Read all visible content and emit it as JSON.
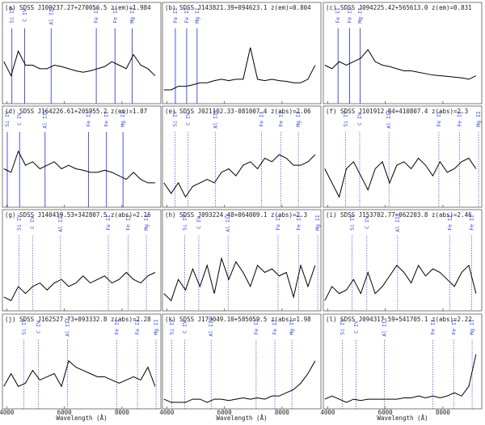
{
  "chart_data": [
    {
      "type": "line",
      "title": "(a) SDSS J100237.27+270056.5  z(em)=1.984",
      "x": [
        3900,
        4150,
        4400,
        4650,
        4900,
        5150,
        5400,
        5650,
        5900,
        6150,
        6400,
        6650,
        6900,
        7150,
        7400,
        7650,
        7900,
        8150,
        8400,
        8650,
        8900,
        9150
      ],
      "series": [
        {
          "color": "#000000",
          "values": [
            0.55,
            0.35,
            0.7,
            0.5,
            0.5,
            0.45,
            0.45,
            0.5,
            0.48,
            0.45,
            0.42,
            0.4,
            0.42,
            0.45,
            0.48,
            0.55,
            0.5,
            0.45,
            0.65,
            0.5,
            0.45,
            0.35
          ]
        }
      ],
      "xlim": [
        3850,
        9350
      ],
      "ylim": [
        0,
        1
      ],
      "xticks": [
        4000,
        6000,
        8000
      ],
      "line_color": "#3344dd",
      "line_style": "solid",
      "lines": [
        {
          "label": "Si IV",
          "wavelength": 4178
        },
        {
          "label": "C IV",
          "wavelength": 4622
        },
        {
          "label": "Al III",
          "wavelength": 5541
        },
        {
          "label": "Fe II",
          "wavelength": 7108
        },
        {
          "label": "Fe II",
          "wavelength": 7758
        },
        {
          "label": "Mg II",
          "wavelength": 8355
        }
      ]
    },
    {
      "type": "line",
      "title": "(b) SDSS J143821.39+094623.1  z(em)=0.804",
      "x": [
        3900,
        4150,
        4400,
        4650,
        4900,
        5150,
        5400,
        5650,
        5900,
        6150,
        6400,
        6650,
        6900,
        7150,
        7400,
        7650,
        7900,
        8150,
        8400,
        8650,
        8900,
        9150
      ],
      "series": [
        {
          "color": "#000000",
          "values": [
            0.15,
            0.15,
            0.2,
            0.2,
            0.22,
            0.25,
            0.25,
            0.28,
            0.3,
            0.28,
            0.3,
            0.3,
            0.75,
            0.3,
            0.28,
            0.3,
            0.28,
            0.27,
            0.25,
            0.25,
            0.3,
            0.5
          ]
        }
      ],
      "xlim": [
        3850,
        9350
      ],
      "ylim": [
        0,
        1
      ],
      "xticks": [
        4000,
        6000,
        8000
      ],
      "line_color": "#3344dd",
      "line_style": "solid",
      "lines": [
        {
          "label": "Fe II",
          "wavelength": 4297
        },
        {
          "label": "Fe II",
          "wavelength": 4690
        },
        {
          "label": "Mg II",
          "wavelength": 5051
        }
      ]
    },
    {
      "type": "line",
      "title": "(c) SDSS J094225.42+565613.0  z(em)=0.831",
      "x": [
        3900,
        4150,
        4400,
        4650,
        4900,
        5150,
        5400,
        5650,
        5900,
        6150,
        6400,
        6650,
        6900,
        7150,
        7400,
        7650,
        7900,
        8150,
        8400,
        8650,
        8900,
        9150
      ],
      "series": [
        {
          "color": "#000000",
          "values": [
            0.5,
            0.45,
            0.55,
            0.5,
            0.55,
            0.6,
            0.72,
            0.55,
            0.5,
            0.48,
            0.45,
            0.42,
            0.42,
            0.4,
            0.38,
            0.36,
            0.35,
            0.34,
            0.33,
            0.32,
            0.3,
            0.35
          ]
        }
      ],
      "xlim": [
        3850,
        9350
      ],
      "ylim": [
        0,
        1
      ],
      "xticks": [
        4000,
        6000,
        8000
      ],
      "line_color": "#3344dd",
      "line_style": "solid",
      "lines": [
        {
          "label": "Fe II",
          "wavelength": 4361
        },
        {
          "label": "Fe II",
          "wavelength": 4761
        },
        {
          "label": "Mg II",
          "wavelength": 5127
        }
      ]
    },
    {
      "type": "line",
      "title": "(d) SDSS J164226.61+205955.2  z(em)=1.87",
      "x": [
        3900,
        4150,
        4400,
        4650,
        4900,
        5150,
        5400,
        5650,
        5900,
        6150,
        6400,
        6650,
        6900,
        7150,
        7400,
        7650,
        7900,
        8150,
        8400,
        8650,
        8900,
        9150
      ],
      "series": [
        {
          "color": "#000000",
          "values": [
            0.5,
            0.45,
            0.75,
            0.55,
            0.6,
            0.5,
            0.55,
            0.6,
            0.5,
            0.55,
            0.5,
            0.48,
            0.45,
            0.45,
            0.48,
            0.45,
            0.4,
            0.35,
            0.45,
            0.35,
            0.3,
            0.3
          ]
        }
      ],
      "xlim": [
        3850,
        9350
      ],
      "ylim": [
        0,
        1
      ],
      "xticks": [
        4000,
        6000,
        8000
      ],
      "line_color": "#3344dd",
      "line_style": "solid",
      "lines": [
        {
          "label": "Si IV",
          "wavelength": 4018
        },
        {
          "label": "C IV",
          "wavelength": 4446
        },
        {
          "label": "Al III",
          "wavelength": 5330
        },
        {
          "label": "Fe II",
          "wavelength": 6836
        },
        {
          "label": "Fe II",
          "wavelength": 7462
        },
        {
          "label": "Mg II",
          "wavelength": 8036
        }
      ]
    },
    {
      "type": "line",
      "title": "(e) SDSS J021102.33-081007.4  z(abs)=2.06",
      "x": [
        3900,
        4150,
        4400,
        4650,
        4900,
        5150,
        5400,
        5650,
        5900,
        6150,
        6400,
        6650,
        6900,
        7150,
        7400,
        7650,
        7900,
        8150,
        8400,
        8650,
        8900,
        9150
      ],
      "series": [
        {
          "color": "#000000",
          "values": [
            0.3,
            0.15,
            0.3,
            0.1,
            0.25,
            0.3,
            0.35,
            0.3,
            0.45,
            0.5,
            0.4,
            0.55,
            0.6,
            0.5,
            0.65,
            0.6,
            0.7,
            0.65,
            0.55,
            0.55,
            0.6,
            0.7
          ]
        }
      ],
      "xlim": [
        3850,
        9350
      ],
      "ylim": [
        0,
        1
      ],
      "xticks": [
        4000,
        6000,
        8000
      ],
      "line_color": "#3344dd",
      "line_style": "dotted",
      "lines": [
        {
          "label": "Si IV",
          "wavelength": 4284
        },
        {
          "label": "C IV",
          "wavelength": 4740
        },
        {
          "label": "Al III",
          "wavelength": 5682
        },
        {
          "label": "Fe II",
          "wavelength": 7289
        },
        {
          "label": "Fe II",
          "wavelength": 7956
        },
        {
          "label": "Mg II",
          "wavelength": 8568
        }
      ]
    },
    {
      "type": "line",
      "title": "(f) SDSS J101912.84+410807.4  z(abs)=2.3",
      "x": [
        3900,
        4150,
        4400,
        4650,
        4900,
        5150,
        5400,
        5650,
        5900,
        6150,
        6400,
        6650,
        6900,
        7150,
        7400,
        7650,
        7900,
        8150,
        8400,
        8650,
        8900,
        9150
      ],
      "series": [
        {
          "color": "#000000",
          "values": [
            0.5,
            0.3,
            0.1,
            0.5,
            0.6,
            0.4,
            0.2,
            0.5,
            0.6,
            0.3,
            0.55,
            0.6,
            0.5,
            0.65,
            0.55,
            0.4,
            0.6,
            0.45,
            0.5,
            0.6,
            0.65,
            0.5
          ]
        }
      ],
      "xlim": [
        3850,
        9350
      ],
      "ylim": [
        0,
        1
      ],
      "xticks": [
        4000,
        6000,
        8000
      ],
      "line_color": "#3344dd",
      "line_style": "dotted",
      "lines": [
        {
          "label": "Si IV",
          "wavelength": 4620
        },
        {
          "label": "C IV",
          "wavelength": 5112
        },
        {
          "label": "Al III",
          "wavelength": 6128
        },
        {
          "label": "Fe II",
          "wavelength": 7861
        },
        {
          "label": "Fe II",
          "wavelength": 8580
        },
        {
          "label": "Mg II",
          "wavelength": 9240
        }
      ]
    },
    {
      "type": "line",
      "title": "(g) SDSS J140419.53+342807.5  z(abs)=2.16",
      "x": [
        3900,
        4150,
        4400,
        4650,
        4900,
        5150,
        5400,
        5650,
        5900,
        6150,
        6400,
        6650,
        6900,
        7150,
        7400,
        7650,
        7900,
        8150,
        8400,
        8650,
        8900,
        9150
      ],
      "series": [
        {
          "color": "#000000",
          "values": [
            0.15,
            0.1,
            0.3,
            0.2,
            0.3,
            0.35,
            0.25,
            0.35,
            0.4,
            0.3,
            0.35,
            0.45,
            0.35,
            0.4,
            0.45,
            0.35,
            0.4,
            0.5,
            0.4,
            0.35,
            0.45,
            0.5
          ]
        }
      ],
      "xlim": [
        3850,
        9350
      ],
      "ylim": [
        0,
        1
      ],
      "xticks": [
        4000,
        6000,
        8000
      ],
      "line_color": "#3344dd",
      "line_style": "dotted",
      "lines": [
        {
          "label": "Si IV",
          "wavelength": 4424
        },
        {
          "label": "C IV",
          "wavelength": 4895
        },
        {
          "label": "Al III",
          "wavelength": 5868
        },
        {
          "label": "Fe II",
          "wavelength": 7527
        },
        {
          "label": "Fe II",
          "wavelength": 8216
        },
        {
          "label": "Mg II",
          "wavelength": 8848
        }
      ]
    },
    {
      "type": "line",
      "title": "(h) SDSS J093224.48+064009.1  z(abs)=2.3",
      "x": [
        3900,
        4150,
        4400,
        4650,
        4900,
        5150,
        5400,
        5650,
        5900,
        6150,
        6400,
        6650,
        6900,
        7150,
        7400,
        7650,
        7900,
        8150,
        8400,
        8650,
        8900,
        9150
      ],
      "series": [
        {
          "color": "#000000",
          "values": [
            0.2,
            0.1,
            0.4,
            0.25,
            0.55,
            0.3,
            0.6,
            0.2,
            0.7,
            0.4,
            0.65,
            0.5,
            0.3,
            0.6,
            0.5,
            0.55,
            0.45,
            0.5,
            0.15,
            0.6,
            0.3,
            0.6
          ]
        }
      ],
      "xlim": [
        3850,
        9350
      ],
      "ylim": [
        0,
        1
      ],
      "xticks": [
        4000,
        6000,
        8000
      ],
      "line_color": "#3344dd",
      "line_style": "dotted",
      "lines": [
        {
          "label": "Si IV",
          "wavelength": 4620
        },
        {
          "label": "C IV",
          "wavelength": 5112
        },
        {
          "label": "Al III",
          "wavelength": 6128
        },
        {
          "label": "Fe II",
          "wavelength": 7861
        },
        {
          "label": "Fe II",
          "wavelength": 8580
        },
        {
          "label": "Mg II",
          "wavelength": 9240
        }
      ]
    },
    {
      "type": "line",
      "title": "(i) SDSS J153702.77+062203.8  z(abs)=2.46",
      "x": [
        3900,
        4150,
        4400,
        4650,
        4900,
        5150,
        5400,
        5650,
        5900,
        6150,
        6400,
        6650,
        6900,
        7150,
        7400,
        7650,
        7900,
        8150,
        8400,
        8650,
        8900,
        9150
      ],
      "series": [
        {
          "color": "#000000",
          "values": [
            0.1,
            0.3,
            0.2,
            0.25,
            0.4,
            0.2,
            0.5,
            0.2,
            0.3,
            0.45,
            0.6,
            0.5,
            0.35,
            0.6,
            0.45,
            0.55,
            0.5,
            0.4,
            0.3,
            0.5,
            0.6,
            0.2
          ]
        }
      ],
      "xlim": [
        3850,
        9350
      ],
      "ylim": [
        0,
        1
      ],
      "xticks": [
        4000,
        6000,
        8000
      ],
      "line_color": "#3344dd",
      "line_style": "dotted",
      "lines": [
        {
          "label": "Si IV",
          "wavelength": 4844
        },
        {
          "label": "C IV",
          "wavelength": 5360
        },
        {
          "label": "Al III",
          "wavelength": 6426
        },
        {
          "label": "Fe II",
          "wavelength": 8242
        },
        {
          "label": "Fe II",
          "wavelength": 8996
        }
      ]
    },
    {
      "type": "line",
      "title": "(j) SDSS J162527.73+093332.8  z(abs)=2.28",
      "x": [
        3900,
        4150,
        4400,
        4650,
        4900,
        5150,
        5400,
        5650,
        5900,
        6150,
        6400,
        6650,
        6900,
        7150,
        7400,
        7650,
        7900,
        8150,
        8400,
        8650,
        8900,
        9150
      ],
      "series": [
        {
          "color": "#000000",
          "values": [
            0.3,
            0.5,
            0.3,
            0.35,
            0.55,
            0.4,
            0.45,
            0.5,
            0.3,
            0.7,
            0.6,
            0.55,
            0.5,
            0.45,
            0.45,
            0.4,
            0.35,
            0.4,
            0.45,
            0.4,
            0.6,
            0.3
          ]
        }
      ],
      "xlim": [
        3850,
        9350
      ],
      "ylim": [
        0,
        1
      ],
      "xticks": [
        4000,
        6000,
        8000
      ],
      "xlabel": "Wavelength (Å)",
      "line_color": "#3344dd",
      "line_style": "dotted",
      "lines": [
        {
          "label": "Si IV",
          "wavelength": 4592
        },
        {
          "label": "C IV",
          "wavelength": 5093
        },
        {
          "label": "Al III",
          "wavelength": 6105
        },
        {
          "label": "Fe II",
          "wavelength": 7823
        },
        {
          "label": "Fe II",
          "wavelength": 8538
        },
        {
          "label": "Mg II",
          "wavelength": 9184
        }
      ]
    },
    {
      "type": "line",
      "title": "(k) SDSS J173049.10+585059.5  z(abs)=1.98",
      "x": [
        3900,
        4150,
        4400,
        4650,
        4900,
        5150,
        5400,
        5650,
        5900,
        6150,
        6400,
        6650,
        6900,
        7150,
        7400,
        7650,
        7900,
        8150,
        8400,
        8650,
        8900,
        9150
      ],
      "series": [
        {
          "color": "#000000",
          "values": [
            0.1,
            0.05,
            0.05,
            0.05,
            0.1,
            0.1,
            0.05,
            0.1,
            0.1,
            0.08,
            0.1,
            0.12,
            0.1,
            0.12,
            0.1,
            0.15,
            0.15,
            0.2,
            0.25,
            0.35,
            0.5,
            0.7
          ]
        }
      ],
      "xlim": [
        3850,
        9350
      ],
      "ylim": [
        0,
        1
      ],
      "xticks": [
        4000,
        6000,
        8000
      ],
      "xlabel": "Wavelength (Å)",
      "line_color": "#3344dd",
      "line_style": "dotted",
      "lines": [
        {
          "label": "Si IV",
          "wavelength": 4172
        },
        {
          "label": "C IV",
          "wavelength": 4616
        },
        {
          "label": "Al III",
          "wavelength": 5539
        },
        {
          "label": "Fe II",
          "wavelength": 7102
        },
        {
          "label": "Fe II",
          "wavelength": 7752
        },
        {
          "label": "Mg II",
          "wavelength": 8344
        }
      ]
    },
    {
      "type": "line",
      "title": "(l) SDSS J094317.59+541705.1  z(abs)=2.22",
      "x": [
        3900,
        4150,
        4400,
        4650,
        4900,
        5150,
        5400,
        5650,
        5900,
        6150,
        6400,
        6650,
        6900,
        7150,
        7400,
        7650,
        7900,
        8150,
        8400,
        8650,
        8900,
        9150
      ],
      "series": [
        {
          "color": "#000000",
          "values": [
            0.1,
            0.15,
            0.1,
            0.05,
            0.1,
            0.08,
            0.1,
            0.1,
            0.1,
            0.1,
            0.1,
            0.12,
            0.12,
            0.15,
            0.12,
            0.15,
            0.12,
            0.15,
            0.2,
            0.15,
            0.3,
            0.8
          ]
        }
      ],
      "xlim": [
        3850,
        9350
      ],
      "ylim": [
        0,
        1
      ],
      "xticks": [
        4000,
        6000,
        8000
      ],
      "xlabel": "Wavelength (Å)",
      "line_color": "#3344dd",
      "line_style": "dotted",
      "lines": [
        {
          "label": "Si IV",
          "wavelength": 4508
        },
        {
          "label": "C IV",
          "wavelength": 4987
        },
        {
          "label": "Al III",
          "wavelength": 5968
        },
        {
          "label": "Fe II",
          "wavelength": 7655
        },
        {
          "label": "Fe II",
          "wavelength": 8375
        },
        {
          "label": "Mg II",
          "wavelength": 9016
        }
      ]
    }
  ]
}
